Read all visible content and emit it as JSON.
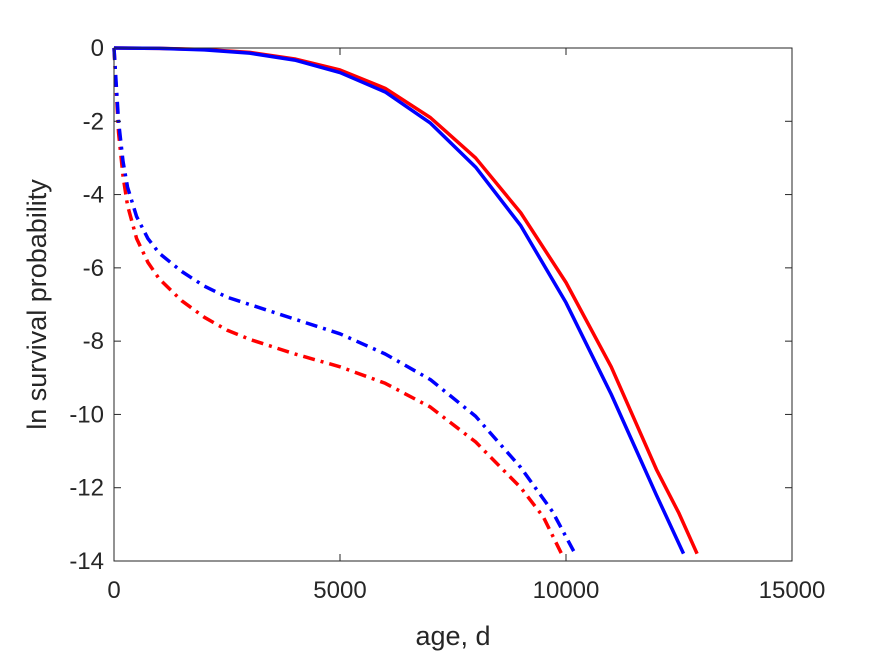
{
  "chart_data": {
    "type": "line",
    "title": "",
    "xlabel": "age, d",
    "ylabel": "ln survival probability",
    "xlim": [
      0,
      15000
    ],
    "ylim": [
      -14,
      0
    ],
    "xticks": [
      0,
      5000,
      10000,
      15000
    ],
    "xtick_labels": [
      "0",
      "5000",
      "10000",
      "15000"
    ],
    "yticks": [
      0,
      -2,
      -4,
      -6,
      -8,
      -10,
      -12,
      -14
    ],
    "ytick_labels": [
      "0",
      "-2",
      "-4",
      "-6",
      "-8",
      "-10",
      "-12",
      "-14"
    ],
    "grid": false,
    "legend": "none",
    "series": [
      {
        "color": "#ff0000",
        "style": "solid",
        "x": [
          0,
          1000,
          2000,
          3000,
          4000,
          5000,
          6000,
          7000,
          8000,
          9000,
          10000,
          11000,
          12000,
          12500,
          12900
        ],
        "y": [
          0,
          -0.01,
          -0.04,
          -0.12,
          -0.3,
          -0.6,
          -1.1,
          -1.9,
          -3.0,
          -4.5,
          -6.4,
          -8.7,
          -11.5,
          -12.7,
          -13.8
        ]
      },
      {
        "color": "#0000ff",
        "style": "solid",
        "x": [
          0,
          1000,
          2000,
          3000,
          4000,
          5000,
          6000,
          7000,
          8000,
          9000,
          10000,
          11000,
          12000,
          12600
        ],
        "y": [
          0,
          -0.01,
          -0.05,
          -0.14,
          -0.33,
          -0.67,
          -1.2,
          -2.05,
          -3.25,
          -4.85,
          -6.95,
          -9.45,
          -12.2,
          -13.8
        ]
      },
      {
        "color": "#ff0000",
        "style": "dashdot",
        "x": [
          0,
          100,
          200,
          300,
          500,
          750,
          1000,
          1500,
          2000,
          2500,
          3000,
          4000,
          5000,
          6000,
          7000,
          8000,
          9000,
          9500,
          9900
        ],
        "y": [
          0,
          -2.3,
          -3.5,
          -4.3,
          -5.2,
          -5.85,
          -6.3,
          -6.9,
          -7.35,
          -7.7,
          -7.95,
          -8.35,
          -8.7,
          -9.15,
          -9.8,
          -10.75,
          -12.0,
          -12.8,
          -13.8
        ]
      },
      {
        "color": "#0000ff",
        "style": "dashdot",
        "x": [
          0,
          100,
          200,
          300,
          500,
          750,
          1000,
          1500,
          2000,
          2500,
          3000,
          4000,
          5000,
          6000,
          7000,
          8000,
          9000,
          9700,
          10200
        ],
        "y": [
          0,
          -2.0,
          -3.1,
          -3.8,
          -4.6,
          -5.2,
          -5.6,
          -6.1,
          -6.5,
          -6.8,
          -7.0,
          -7.4,
          -7.8,
          -8.35,
          -9.05,
          -10.05,
          -11.45,
          -12.65,
          -13.8
        ]
      }
    ]
  }
}
